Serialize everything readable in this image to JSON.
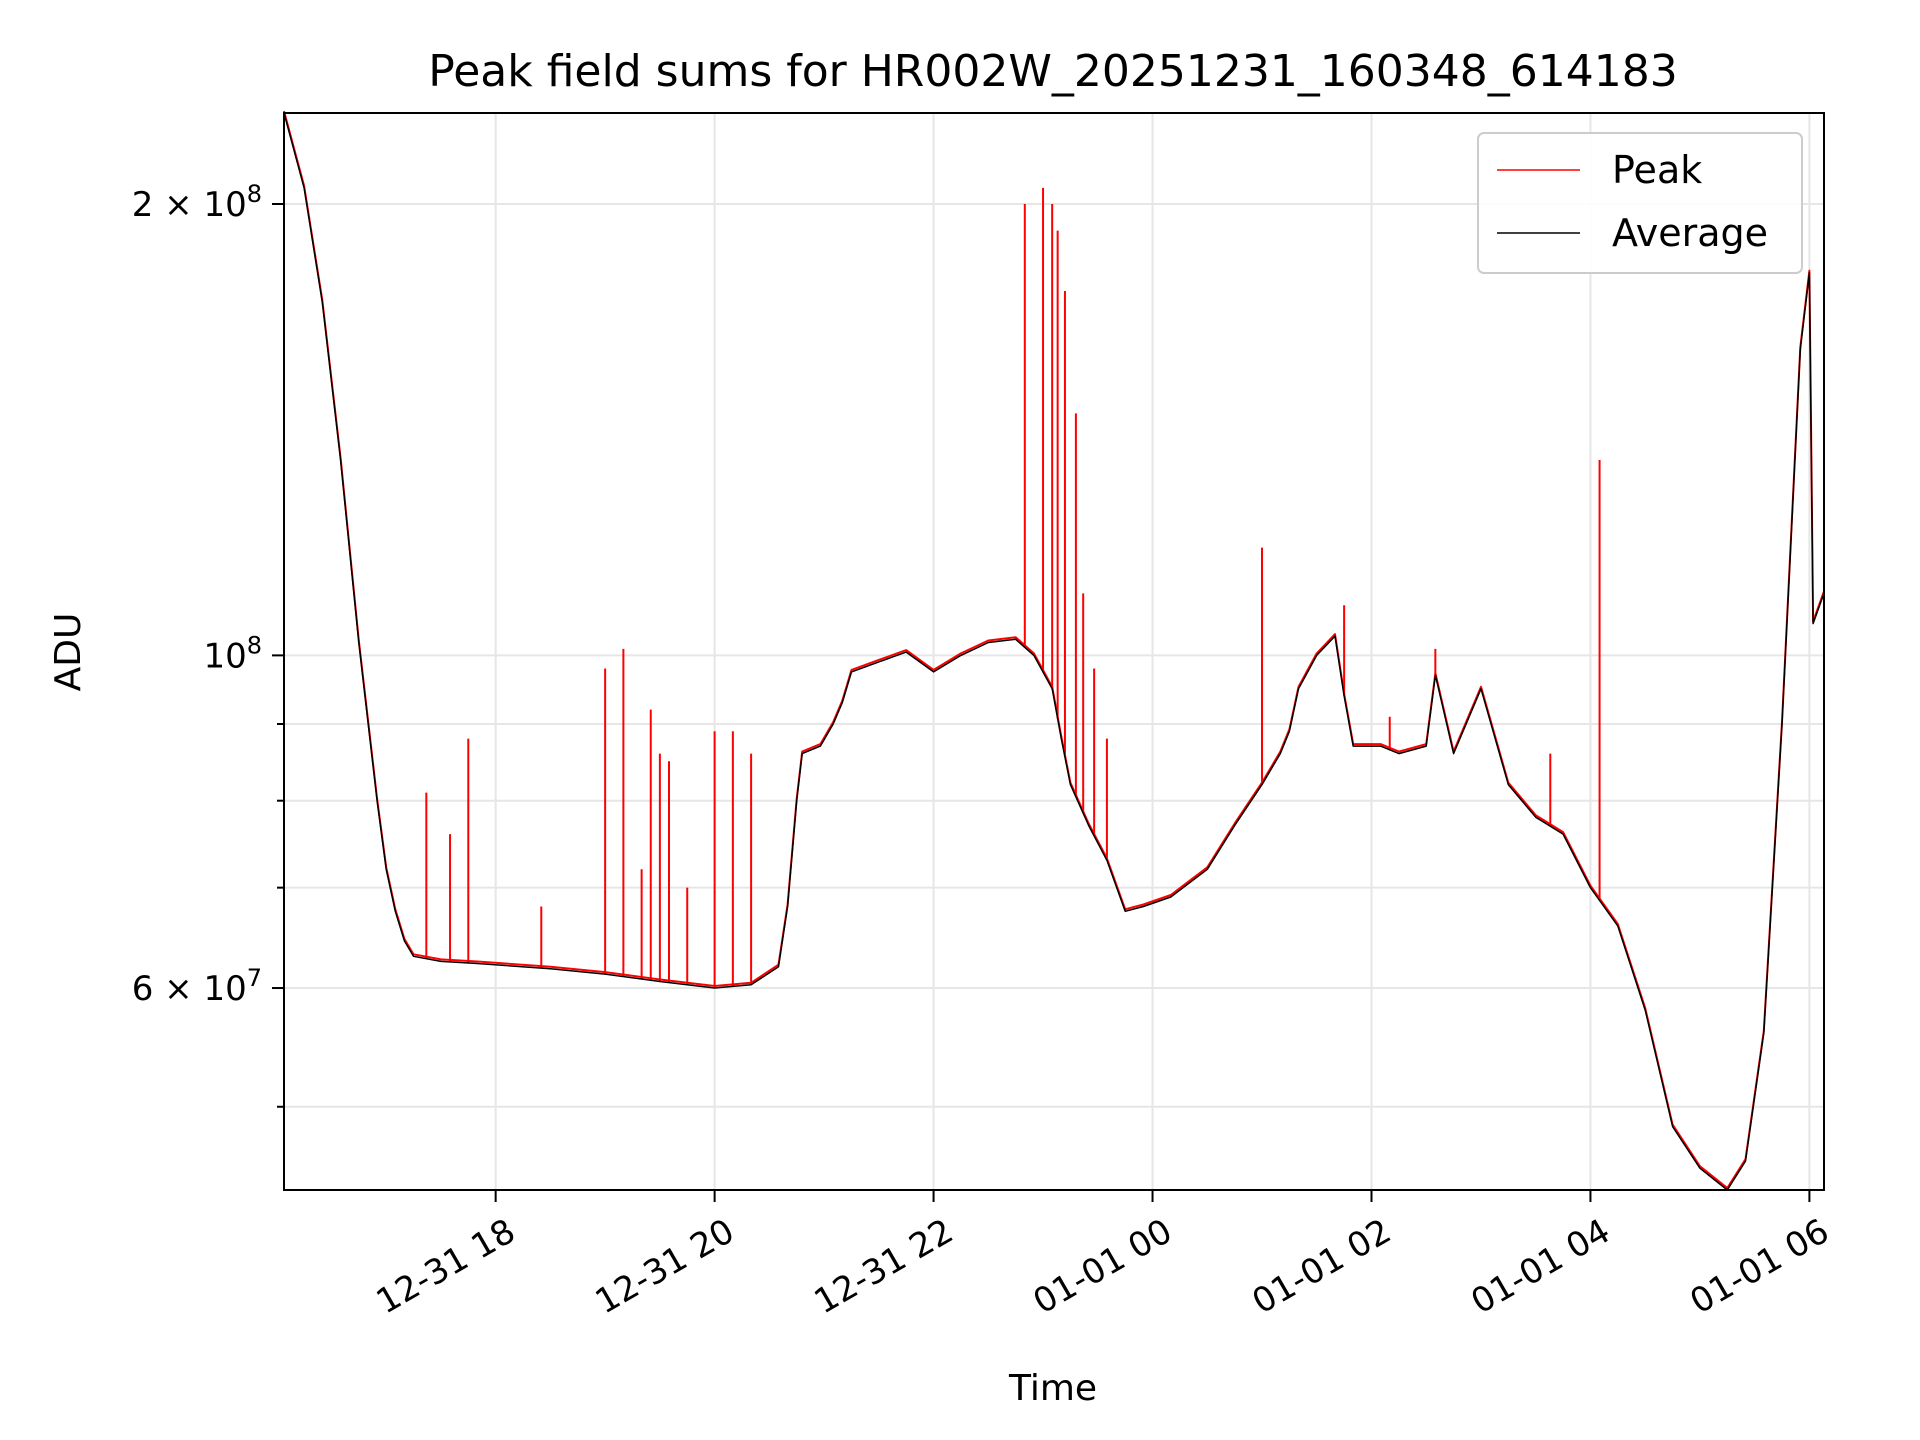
{
  "chart_data": {
    "type": "line",
    "title": "Peak field sums for HR002W_20251231_160348_614183",
    "xlabel": "Time",
    "ylabel": "ADU",
    "yscale": "log",
    "ylim": [
      44000000,
      230000000
    ],
    "xlim": [
      "2025-12-31 16:04",
      "2026-01-01 06:08"
    ],
    "grid": true,
    "legend_position": "top-right",
    "x_ticks": [
      {
        "label": "12-31 18",
        "time": "2025-12-31 18:00"
      },
      {
        "label": "12-31 20",
        "time": "2025-12-31 20:00"
      },
      {
        "label": "12-31 22",
        "time": "2025-12-31 22:00"
      },
      {
        "label": "01-01 00",
        "time": "2026-01-01 00:00"
      },
      {
        "label": "01-01 02",
        "time": "2026-01-01 02:00"
      },
      {
        "label": "01-01 04",
        "time": "2026-01-01 04:00"
      },
      {
        "label": "01-01 06",
        "time": "2026-01-01 06:00"
      }
    ],
    "y_ticks": [
      {
        "label_base": "6 × 10",
        "label_exp": "7",
        "value": 60000000
      },
      {
        "label_base": "10",
        "label_exp": "8",
        "value": 100000000
      },
      {
        "label_base": "2 × 10",
        "label_exp": "8",
        "value": 200000000
      }
    ],
    "minor_y_ticks": [
      50000000,
      70000000,
      80000000,
      90000000
    ],
    "series": [
      {
        "name": "Average",
        "color": "#000000",
        "points": [
          [
            "2025-12-31 16:04",
            230000000
          ],
          [
            "2025-12-31 16:15",
            205000000
          ],
          [
            "2025-12-31 16:25",
            172000000
          ],
          [
            "2025-12-31 16:35",
            135000000
          ],
          [
            "2025-12-31 16:45",
            102000000
          ],
          [
            "2025-12-31 16:55",
            80000000
          ],
          [
            "2025-12-31 17:00",
            72000000
          ],
          [
            "2025-12-31 17:05",
            67500000
          ],
          [
            "2025-12-31 17:10",
            64500000
          ],
          [
            "2025-12-31 17:15",
            63000000
          ],
          [
            "2025-12-31 17:30",
            62500000
          ],
          [
            "2025-12-31 17:50",
            62300000
          ],
          [
            "2025-12-31 18:30",
            61800000
          ],
          [
            "2025-12-31 19:00",
            61300000
          ],
          [
            "2025-12-31 19:30",
            60600000
          ],
          [
            "2025-12-31 20:00",
            60000000
          ],
          [
            "2025-12-31 20:20",
            60300000
          ],
          [
            "2025-12-31 20:35",
            62000000
          ],
          [
            "2025-12-31 20:40",
            68000000
          ],
          [
            "2025-12-31 20:45",
            80000000
          ],
          [
            "2025-12-31 20:48",
            86000000
          ],
          [
            "2025-12-31 20:58",
            87000000
          ],
          [
            "2025-12-31 21:05",
            90000000
          ],
          [
            "2025-12-31 21:10",
            93000000
          ],
          [
            "2025-12-31 21:15",
            97500000
          ],
          [
            "2025-12-31 21:30",
            99000000
          ],
          [
            "2025-12-31 21:45",
            100500000
          ],
          [
            "2025-12-31 22:00",
            97500000
          ],
          [
            "2025-12-31 22:15",
            100000000
          ],
          [
            "2025-12-31 22:30",
            102000000
          ],
          [
            "2025-12-31 22:45",
            102500000
          ],
          [
            "2025-12-31 22:55",
            100000000
          ],
          [
            "2025-12-31 23:05",
            95000000
          ],
          [
            "2025-12-31 23:10",
            88000000
          ],
          [
            "2025-12-31 23:15",
            82000000
          ],
          [
            "2025-12-31 23:25",
            77000000
          ],
          [
            "2025-12-31 23:35",
            73000000
          ],
          [
            "2025-12-31 23:45",
            67500000
          ],
          [
            "2025-12-31 23:55",
            68000000
          ],
          [
            "2026-01-01 00:10",
            69000000
          ],
          [
            "2026-01-01 00:30",
            72000000
          ],
          [
            "2026-01-01 00:45",
            77000000
          ],
          [
            "2026-01-01 01:00",
            82000000
          ],
          [
            "2026-01-01 01:10",
            86000000
          ],
          [
            "2026-01-01 01:15",
            89000000
          ],
          [
            "2026-01-01 01:20",
            95000000
          ],
          [
            "2026-01-01 01:30",
            100000000
          ],
          [
            "2026-01-01 01:40",
            103000000
          ],
          [
            "2026-01-01 01:45",
            94000000
          ],
          [
            "2026-01-01 01:50",
            87000000
          ],
          [
            "2026-01-01 02:05",
            87000000
          ],
          [
            "2026-01-01 02:15",
            86000000
          ],
          [
            "2026-01-01 02:30",
            87000000
          ],
          [
            "2026-01-01 02:35",
            97000000
          ],
          [
            "2026-01-01 02:45",
            86000000
          ],
          [
            "2026-01-01 03:00",
            95000000
          ],
          [
            "2026-01-01 03:15",
            82000000
          ],
          [
            "2026-01-01 03:30",
            78000000
          ],
          [
            "2026-01-01 03:45",
            76000000
          ],
          [
            "2026-01-01 04:00",
            70000000
          ],
          [
            "2026-01-01 04:15",
            66000000
          ],
          [
            "2026-01-01 04:30",
            58000000
          ],
          [
            "2026-01-01 04:45",
            48500000
          ],
          [
            "2026-01-01 05:00",
            45500000
          ],
          [
            "2026-01-01 05:15",
            44000000
          ],
          [
            "2026-01-01 05:25",
            46000000
          ],
          [
            "2026-01-01 05:35",
            56000000
          ],
          [
            "2026-01-01 05:45",
            90000000
          ],
          [
            "2026-01-01 05:55",
            160000000
          ],
          [
            "2026-01-01 06:00",
            180000000
          ],
          [
            "2026-01-01 06:02",
            105000000
          ],
          [
            "2026-01-01 06:08",
            110000000
          ]
        ]
      },
      {
        "name": "Peak",
        "color": "#ff0000",
        "spikes": [
          [
            "2025-12-31 17:22",
            81000000
          ],
          [
            "2025-12-31 17:35",
            76000000
          ],
          [
            "2025-12-31 17:45",
            88000000
          ],
          [
            "2025-12-31 18:25",
            68000000
          ],
          [
            "2025-12-31 19:00",
            98000000
          ],
          [
            "2025-12-31 19:10",
            101000000
          ],
          [
            "2025-12-31 19:20",
            72000000
          ],
          [
            "2025-12-31 19:25",
            92000000
          ],
          [
            "2025-12-31 19:30",
            86000000
          ],
          [
            "2025-12-31 19:35",
            85000000
          ],
          [
            "2025-12-31 19:45",
            70000000
          ],
          [
            "2025-12-31 20:00",
            89000000
          ],
          [
            "2025-12-31 20:10",
            89000000
          ],
          [
            "2025-12-31 20:20",
            86000000
          ],
          [
            "2025-12-31 22:50",
            200000000
          ],
          [
            "2025-12-31 23:00",
            205000000
          ],
          [
            "2025-12-31 23:05",
            200000000
          ],
          [
            "2025-12-31 23:08",
            192000000
          ],
          [
            "2025-12-31 23:12",
            175000000
          ],
          [
            "2025-12-31 23:18",
            145000000
          ],
          [
            "2025-12-31 23:22",
            110000000
          ],
          [
            "2025-12-31 23:28",
            98000000
          ],
          [
            "2025-12-31 23:35",
            88000000
          ],
          [
            "2026-01-01 01:00",
            118000000
          ],
          [
            "2026-01-01 01:45",
            108000000
          ],
          [
            "2026-01-01 02:10",
            91000000
          ],
          [
            "2026-01-01 02:35",
            101000000
          ],
          [
            "2026-01-01 03:38",
            86000000
          ],
          [
            "2026-01-01 04:05",
            135000000
          ]
        ]
      }
    ]
  }
}
